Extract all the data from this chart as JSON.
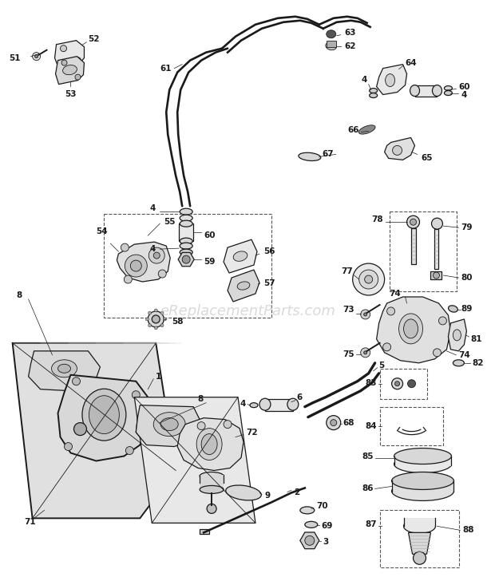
{
  "bg_color": "#ffffff",
  "watermark": "eReplacementParts.com",
  "fig_width": 6.2,
  "fig_height": 7.28,
  "dpi": 100,
  "lc": "#1a1a1a",
  "label_fontsize": 7.5
}
